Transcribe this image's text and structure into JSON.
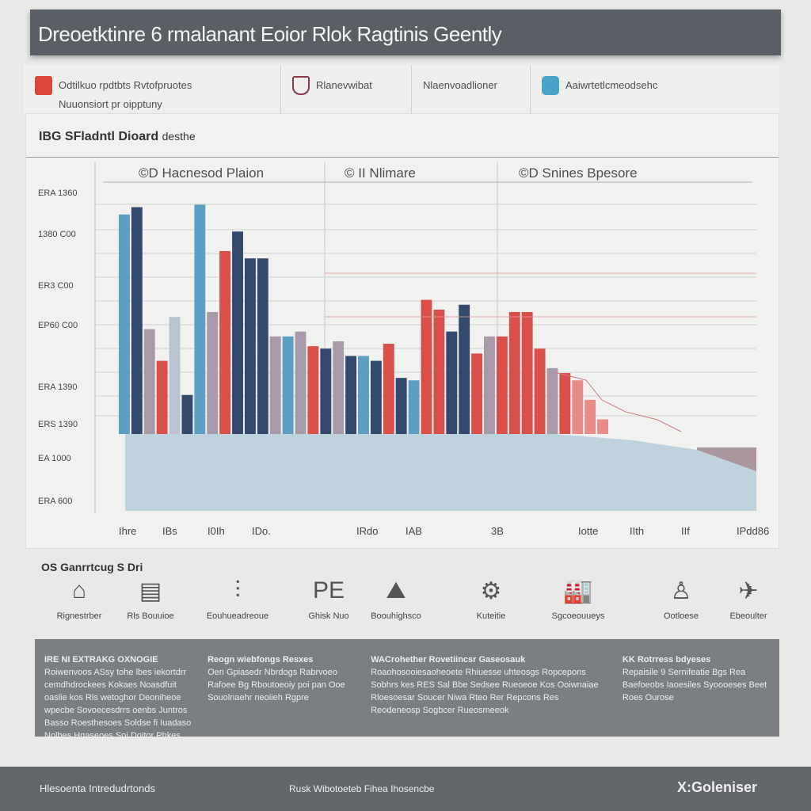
{
  "header": {
    "title": "Dreoetktinre 6 rmalanant Eoior Rlok Ragtinis Geently"
  },
  "info": [
    {
      "icon": "shield-icon-red",
      "color": "#d9473f",
      "lines": [
        "Odtilkuo rpdtbts Rvtofpruotes",
        "Nuuonsiort pr oipptuny"
      ]
    },
    {
      "icon": "shield-icon-maroon",
      "color": "#8a3a45",
      "lines": [
        "Rlanevwibat"
      ]
    },
    {
      "icon": "",
      "color": "",
      "lines": [
        "Nlaenvoadlioner"
      ]
    },
    {
      "icon": "people-icon-blue",
      "color": "#4aa3c8",
      "lines": [
        "Aaiwrtetlcmeodsehc"
      ]
    }
  ],
  "panel": {
    "title": "IBG SFladntl Dioard",
    "title_suffix": "desthe"
  },
  "chart_data": {
    "type": "bar",
    "title": "",
    "section_labels": [
      "©D Hacnesod Plaion",
      "© II Nlimare",
      "©D Snines Bpesore"
    ],
    "yticks": [
      "ERA 1360",
      "1380 C00",
      "ER3 C00",
      "EP60 C00",
      "ERA 1390",
      "ERS 1390",
      "EA 1000",
      "ERA 600"
    ],
    "xticks": [
      "Ihre",
      "IBs",
      "I0Ih",
      "IDo.",
      "IRdo",
      "IAB",
      "3B",
      "Iotte",
      "IIth",
      "IIf",
      "IPdd86"
    ],
    "ylim": [
      0,
      100
    ],
    "grid": true,
    "colors": {
      "navy": "#34496e",
      "blue": "#5d9ec4",
      "red": "#d9504a",
      "mauve": "#a99aaa",
      "gray": "#b8c4d0",
      "pink": "#e78c86"
    },
    "values": [
      90,
      93,
      43,
      30,
      48,
      16,
      94,
      50,
      75,
      83,
      72,
      72,
      40,
      40,
      42,
      36,
      35,
      38,
      32,
      32,
      30,
      37,
      23,
      22,
      55,
      51,
      42,
      53,
      33,
      40,
      40,
      50,
      50,
      35,
      27,
      25,
      22,
      14,
      6
    ],
    "bar_colors": [
      "blue",
      "navy",
      "mauve",
      "red",
      "gray",
      "navy",
      "blue",
      "mauve",
      "red",
      "navy",
      "navy",
      "navy",
      "mauve",
      "blue",
      "mauve",
      "red",
      "navy",
      "mauve",
      "navy",
      "blue",
      "navy",
      "red",
      "navy",
      "blue",
      "red",
      "red",
      "navy",
      "navy",
      "red",
      "mauve",
      "red",
      "red",
      "red",
      "red",
      "mauve",
      "red",
      "pink",
      "pink",
      "pink"
    ]
  },
  "icons": {
    "heading": "OS Ganrrtcug S Dri",
    "items": [
      {
        "icon": "house-icon",
        "glyph": "⌂",
        "label": "Rignestrber"
      },
      {
        "icon": "document-icon",
        "glyph": "▤",
        "label": "Rls Bouuioe"
      },
      {
        "icon": "chart-icon",
        "glyph": "⫶",
        "label": "Eouhueadreoue"
      },
      {
        "icon": "pe-badge-icon",
        "glyph": "PE",
        "label": "Ghisk Nuo"
      },
      {
        "icon": "mountain-icon",
        "glyph": "⛰",
        "label": "Boouhighsco"
      },
      {
        "icon": "machine-icon",
        "glyph": "⚙",
        "label": "Kuteitie"
      },
      {
        "icon": "factory-icon",
        "glyph": "🏭",
        "label": "Sgcoeouueys"
      },
      {
        "icon": "person-icon",
        "glyph": "♙",
        "label": "Ootloese"
      },
      {
        "icon": "bird-icon",
        "glyph": "✈",
        "label": "Ebeoulter"
      }
    ]
  },
  "notes": [
    {
      "title": "IRE NI EXTRAKG OXNOGIE",
      "text": "Roiwenvoos ASsy tohe lbes iekortdrr cemdhdrockees Kokaes Noasdfuit oaslie kos Rls wetoghor Deoniheoe wpecbe Sovoecesdrrs oenbs Juntros Basso Roesthesoes Soldse fi Iuadaso Nolbes Hgaseoes Soi Doitor Phkes"
    },
    {
      "title": "Reogn wiebfongs Resxes",
      "text": "Oen Gpiasedr Nbrdogs Rabrvoeo Rafoee Bg Rboutoeoiy poi pan Ooe Souolnaehr neoiieh Rgpre"
    },
    {
      "title": "WACrohether Rovetiincsr Gaseosauk",
      "text": "Roaohosooiesaoheoete Rhiuesse uhteosgs Ropcepons Sobhrs kes RES Sal Bbe Sedsee Rueoeoe Kos Ooiwnaiae Rloesoesar Soucer Niwa Rteo Rer Repcons Res Reodeneosp Sogbcer Rueosmeeok"
    },
    {
      "title": "KK Rotrress bdyeses",
      "text": "Repaisile 9 Sernifeatie Bgs Rea Baefoeobs Iaoesiles Syoooeses Beet Roes Ourose"
    }
  ],
  "footer": {
    "left": "Hlesoenta Intredudrtonds",
    "center": "Rusk Wibotoeteb Fihea Ihosencbe",
    "logo": "X:Goleniser"
  }
}
